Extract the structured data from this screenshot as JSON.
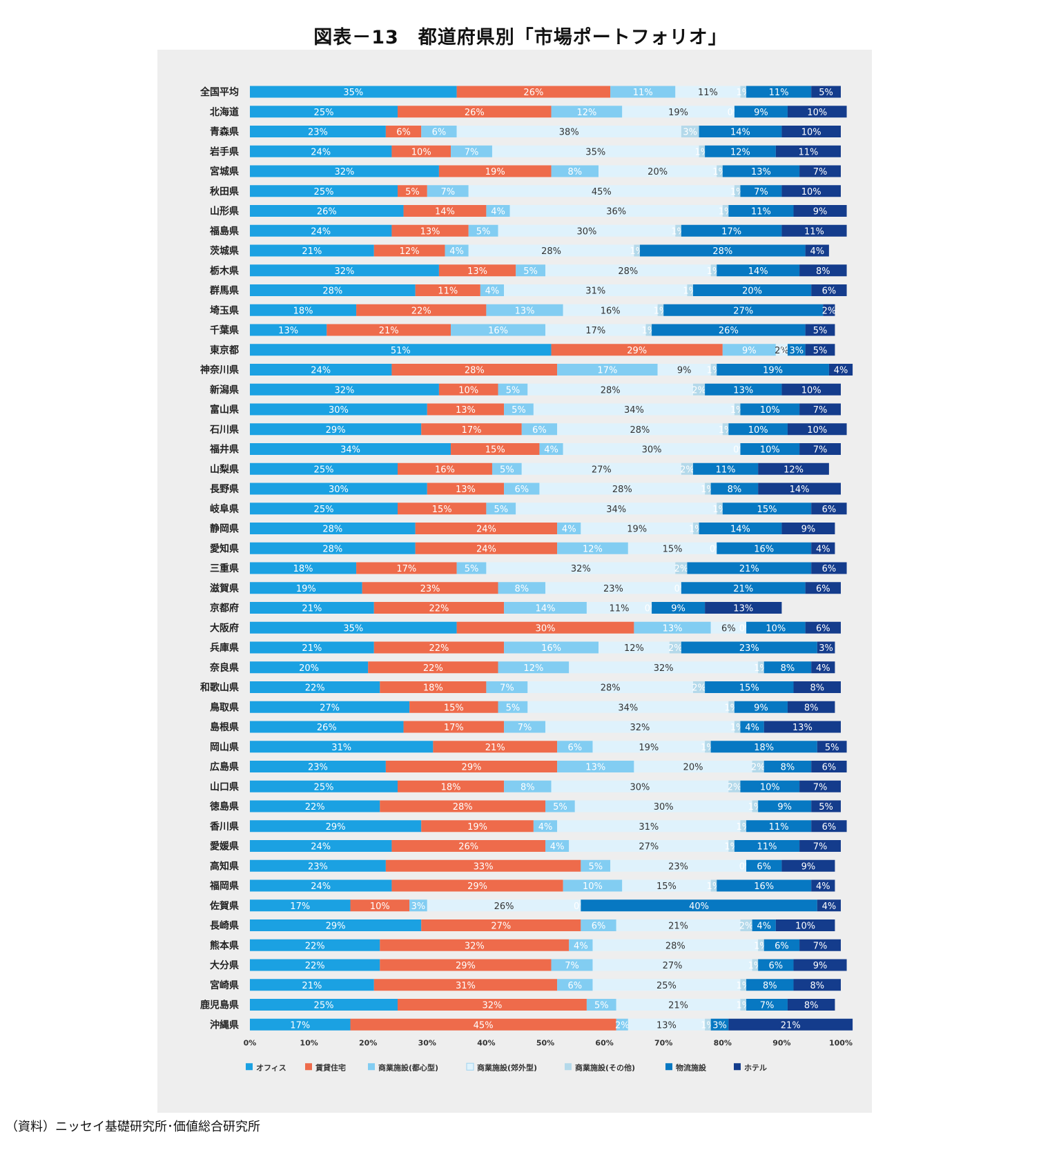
{
  "title": "図表－13　都道府県別「市場ポートフォリオ」",
  "source": "（資料）ニッセイ基礎研究所･価値総合研究所",
  "chart_data": {
    "type": "bar",
    "orientation": "horizontal",
    "stacked": true,
    "xlim": [
      0,
      100
    ],
    "xticks": [
      "0%",
      "10%",
      "20%",
      "30%",
      "40%",
      "50%",
      "60%",
      "70%",
      "80%",
      "90%",
      "100%"
    ],
    "categories": [
      "全国平均",
      "北海道",
      "青森県",
      "岩手県",
      "宮城県",
      "秋田県",
      "山形県",
      "福島県",
      "茨城県",
      "栃木県",
      "群馬県",
      "埼玉県",
      "千葉県",
      "東京都",
      "神奈川県",
      "新潟県",
      "富山県",
      "石川県",
      "福井県",
      "山梨県",
      "長野県",
      "岐阜県",
      "静岡県",
      "愛知県",
      "三重県",
      "滋賀県",
      "京都府",
      "大阪府",
      "兵庫県",
      "奈良県",
      "和歌山県",
      "鳥取県",
      "島根県",
      "岡山県",
      "広島県",
      "山口県",
      "徳島県",
      "香川県",
      "愛媛県",
      "高知県",
      "福岡県",
      "佐賀県",
      "長崎県",
      "熊本県",
      "大分県",
      "宮崎県",
      "鹿児島県",
      "沖縄県"
    ],
    "series": [
      {
        "name": "オフィス",
        "color": "#1ba1e2",
        "label_color": "#ffffff",
        "values": [
          35,
          25,
          23,
          24,
          32,
          25,
          26,
          24,
          21,
          32,
          28,
          18,
          13,
          51,
          24,
          32,
          30,
          29,
          34,
          25,
          30,
          25,
          28,
          28,
          18,
          19,
          21,
          35,
          21,
          20,
          22,
          27,
          26,
          31,
          23,
          25,
          22,
          29,
          24,
          23,
          24,
          17,
          29,
          22,
          22,
          21,
          25,
          17
        ]
      },
      {
        "name": "賃貸住宅",
        "color": "#ee6b4b",
        "label_color": "#ffffff",
        "values": [
          26,
          26,
          6,
          10,
          19,
          5,
          14,
          13,
          12,
          13,
          11,
          22,
          21,
          29,
          28,
          10,
          13,
          17,
          15,
          16,
          13,
          15,
          24,
          24,
          17,
          23,
          22,
          30,
          22,
          22,
          18,
          15,
          17,
          21,
          29,
          18,
          28,
          19,
          26,
          33,
          29,
          10,
          27,
          32,
          29,
          31,
          32,
          45
        ]
      },
      {
        "name": "商業施設(都心型)",
        "color": "#82cdf2",
        "label_color": "#ffffff",
        "values": [
          11,
          12,
          6,
          7,
          8,
          7,
          4,
          5,
          4,
          5,
          4,
          13,
          16,
          9,
          17,
          5,
          5,
          6,
          4,
          5,
          6,
          5,
          4,
          12,
          5,
          8,
          14,
          13,
          16,
          12,
          7,
          5,
          7,
          6,
          13,
          8,
          5,
          4,
          4,
          5,
          10,
          3,
          6,
          4,
          7,
          6,
          5,
          2
        ]
      },
      {
        "name": "商業施設(郊外型)",
        "color": "#dff2fc",
        "label_color": "#333333",
        "values": [
          11,
          19,
          38,
          35,
          20,
          45,
          36,
          30,
          28,
          28,
          31,
          16,
          17,
          2,
          9,
          28,
          34,
          28,
          30,
          27,
          28,
          34,
          19,
          15,
          32,
          23,
          11,
          6,
          12,
          32,
          28,
          34,
          32,
          19,
          20,
          30,
          30,
          31,
          27,
          23,
          15,
          26,
          21,
          28,
          27,
          25,
          21,
          13
        ]
      },
      {
        "name": "商業施設(その他)",
        "color": "#b4d9ea",
        "label_color": "#ffffff",
        "values": [
          1,
          0,
          3,
          1,
          1,
          1,
          1,
          1,
          1,
          1,
          1,
          1,
          1,
          0,
          1,
          2,
          1,
          1,
          0,
          2,
          1,
          1,
          1,
          0,
          2,
          0,
          0,
          0,
          2,
          1,
          2,
          1,
          1,
          1,
          2,
          2,
          1,
          1,
          1,
          0,
          1,
          0,
          2,
          1,
          1,
          1,
          1,
          1
        ]
      },
      {
        "name": "物流施設",
        "color": "#0778c2",
        "label_color": "#ffffff",
        "values": [
          11,
          9,
          14,
          12,
          13,
          7,
          11,
          17,
          28,
          14,
          20,
          27,
          26,
          3,
          19,
          13,
          10,
          10,
          10,
          11,
          8,
          15,
          14,
          16,
          21,
          21,
          9,
          10,
          23,
          8,
          15,
          9,
          4,
          18,
          8,
          10,
          9,
          11,
          11,
          6,
          16,
          40,
          4,
          6,
          6,
          8,
          7,
          3
        ]
      },
      {
        "name": "ホテル",
        "color": "#143c8c",
        "label_color": "#ffffff",
        "values": [
          5,
          10,
          10,
          11,
          7,
          10,
          9,
          11,
          4,
          8,
          6,
          2,
          5,
          5,
          4,
          10,
          7,
          10,
          7,
          12,
          14,
          6,
          9,
          4,
          6,
          6,
          13,
          6,
          3,
          4,
          8,
          8,
          13,
          5,
          6,
          7,
          5,
          6,
          7,
          9,
          4,
          4,
          10,
          7,
          9,
          8,
          8,
          21
        ]
      }
    ],
    "legend_position": "bottom"
  }
}
